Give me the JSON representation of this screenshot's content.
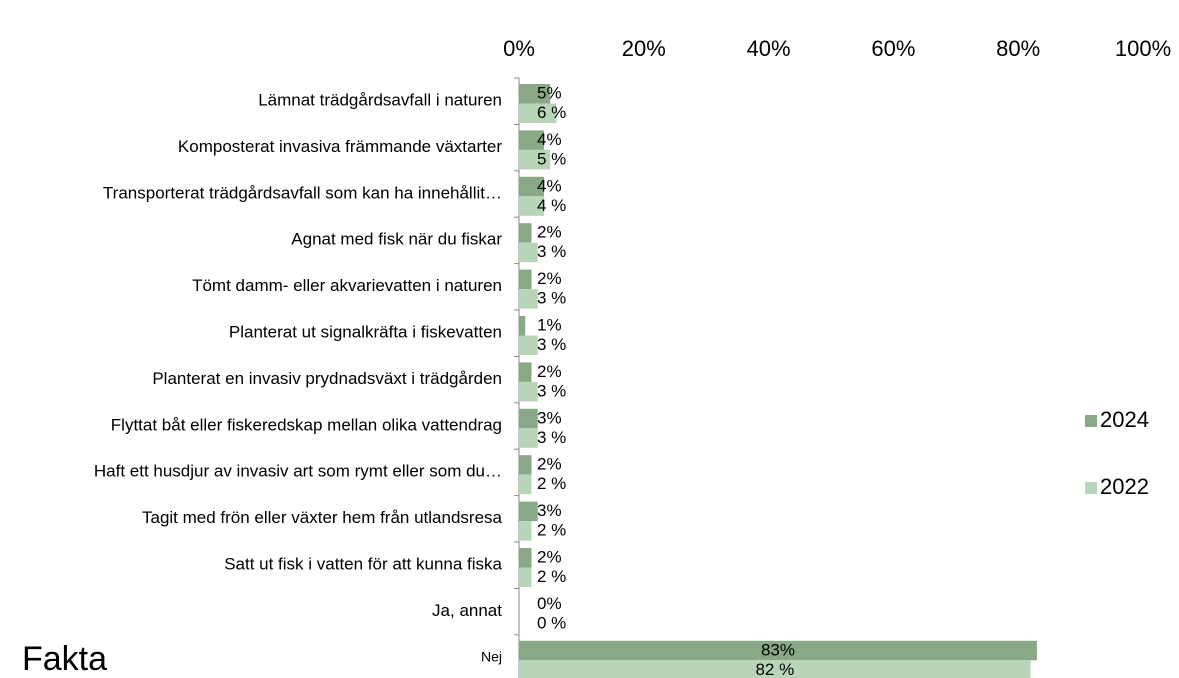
{
  "chart_data": {
    "type": "bar",
    "orientation": "horizontal",
    "subtitle": "Fakta",
    "categories": [
      "Lämnat trädgårdsavfall i naturen",
      "Komposterat invasiva främmande växtarter",
      "Transporterat trädgårdsavfall som kan ha innehållit…",
      "Agnat med fisk när du fiskar",
      "Tömt damm- eller akvarievatten i naturen",
      "Planterat ut signalkräfta i fiskevatten",
      "Planterat en invasiv prydnadsväxt i trädgården",
      "Flyttat båt eller fiskeredskap mellan olika vattendrag",
      "Haft ett husdjur av invasiv art som rymt eller som du…",
      "Tagit med frön eller växter hem från utlandsresa",
      "Satt ut fisk i vatten för att kunna fiska",
      "Ja, annat",
      "Nej"
    ],
    "series": [
      {
        "name": "2024",
        "color": "#88a886",
        "values": [
          5,
          4,
          4,
          2,
          2,
          1,
          2,
          3,
          2,
          3,
          2,
          0,
          83
        ],
        "value_labels": [
          "5%",
          "4%",
          "4%",
          "2%",
          "2%",
          "1%",
          "2%",
          "3%",
          "2%",
          "3%",
          "2%",
          "0%",
          "83%"
        ]
      },
      {
        "name": "2022",
        "color": "#b9d5b7",
        "values": [
          6,
          5,
          4,
          3,
          3,
          3,
          3,
          3,
          2,
          2,
          2,
          0,
          82
        ],
        "value_labels": [
          "6 %",
          "5 %",
          "4 %",
          "3 %",
          "3 %",
          "3 %",
          "3 %",
          "3 %",
          "2 %",
          "2 %",
          "2 %",
          "0 %",
          "82 %"
        ]
      }
    ],
    "xlim": [
      0,
      100
    ],
    "xticks": [
      {
        "value": 0,
        "label": "0%"
      },
      {
        "value": 20,
        "label": "20%"
      },
      {
        "value": 40,
        "label": "40%"
      },
      {
        "value": 60,
        "label": "60%"
      },
      {
        "value": 80,
        "label": "80%"
      },
      {
        "value": 100,
        "label": "100%"
      }
    ],
    "legend": "right"
  }
}
